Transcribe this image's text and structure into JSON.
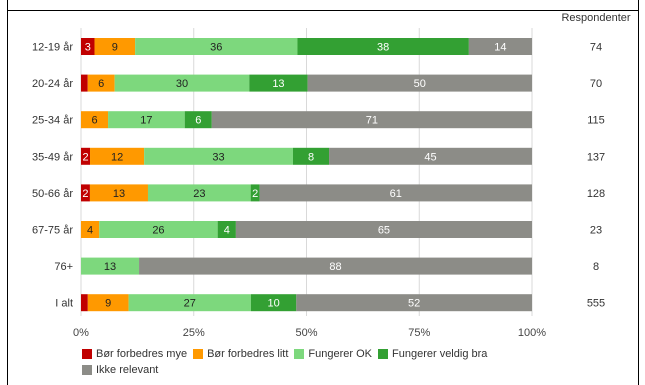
{
  "title_fragment": "",
  "chart_data": {
    "type": "bar",
    "orientation": "horizontal-stacked-percent",
    "categories": [
      "12-19 år",
      "20-24 år",
      "25-34 år",
      "35-49 år",
      "50-66 år",
      "67-75 år",
      "76+",
      "I alt"
    ],
    "series": [
      {
        "name": "Bør forbedres mye",
        "color": "#c00000",
        "values": [
          3,
          1.5,
          0,
          2,
          2,
          0,
          0,
          1.5
        ],
        "labels": [
          "3",
          "",
          "",
          "2",
          "2",
          "",
          "",
          ""
        ]
      },
      {
        "name": "Bør forbedres litt",
        "color": "#ff9900",
        "values": [
          9,
          6,
          6,
          12,
          13,
          4,
          0,
          9
        ],
        "labels": [
          "9",
          "6",
          "6",
          "12",
          "13",
          "4",
          "",
          "9"
        ]
      },
      {
        "name": "Fungerer OK",
        "color": "#7dd87d",
        "values": [
          36,
          30,
          17,
          33,
          23,
          26,
          13,
          27
        ],
        "labels": [
          "36",
          "30",
          "17",
          "33",
          "23",
          "26",
          "13",
          "27"
        ]
      },
      {
        "name": "Fungerer veldig bra",
        "color": "#33a033",
        "values": [
          38,
          13,
          6,
          8,
          2,
          4,
          0,
          10
        ],
        "labels": [
          "38",
          "13",
          "6",
          "8",
          "2",
          "4",
          "",
          "10"
        ]
      },
      {
        "name": "Ikke relevant",
        "color": "#8c8c87",
        "values": [
          14,
          50,
          71,
          45,
          61,
          65,
          88,
          52
        ],
        "labels": [
          "14",
          "50",
          "71",
          "45",
          "61",
          "65",
          "88",
          "52"
        ]
      }
    ],
    "respondents_header": "Respondenter",
    "respondents": [
      "74",
      "70",
      "115",
      "137",
      "128",
      "23",
      "8",
      "555"
    ],
    "xticks": [
      "0%",
      "25%",
      "50%",
      "75%",
      "100%"
    ],
    "xlim": [
      0,
      100
    ],
    "grid": true,
    "legend_position": "bottom"
  }
}
